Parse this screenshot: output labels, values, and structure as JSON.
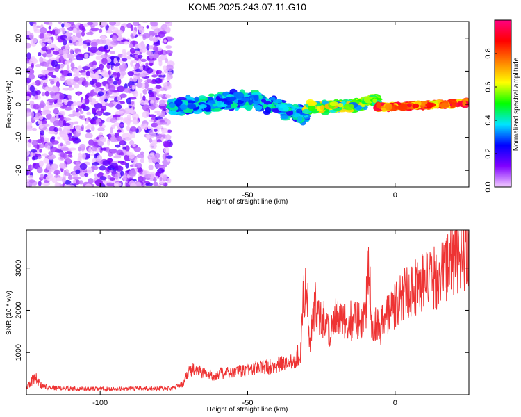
{
  "title": "KOM5.2025.243.07.11.G10",
  "chart_data": [
    {
      "type": "heatmap",
      "xlabel": "Height of straight line (km)",
      "ylabel": "Frequency (Hz)",
      "xlim": [
        -125,
        25
      ],
      "ylim": [
        -25,
        25
      ],
      "xticks": [
        -100,
        -50,
        0
      ],
      "yticks": [
        -20,
        -10,
        0,
        10,
        20
      ],
      "colorbar": {
        "label": "Normalized spectral amplitude",
        "range": [
          0,
          1
        ],
        "ticks": [
          0.0,
          0.2,
          0.4,
          0.6,
          0.8
        ],
        "colors": [
          "#f2ccff",
          "#8000ff",
          "#0000ff",
          "#00e5ff",
          "#00ff00",
          "#ffff00",
          "#ff8000",
          "#ff0000",
          "#ff0080"
        ]
      },
      "regions": [
        {
          "x": [
            -125,
            -76
          ],
          "freq_center": 0,
          "freq_spread": 25,
          "amplitude": [
            0.0,
            0.2
          ],
          "description": "scattered noise"
        },
        {
          "x": [
            -76,
            -48
          ],
          "freq_center": [
            -1,
            1.5
          ],
          "freq_spread": 3,
          "amplitude": [
            0.2,
            0.45
          ]
        },
        {
          "x": [
            -48,
            -30
          ],
          "freq_center": [
            1.5,
            -4
          ],
          "freq_spread": 3,
          "amplitude": [
            0.2,
            0.45
          ]
        },
        {
          "x": [
            -30,
            -10
          ],
          "freq_center": [
            -1,
            0
          ],
          "freq_spread": 2,
          "amplitude": [
            0.3,
            0.7
          ]
        },
        {
          "x": [
            -10,
            -6
          ],
          "freq_center": 1,
          "freq_spread": 1.5,
          "amplitude": [
            0.4,
            0.6
          ]
        },
        {
          "x": [
            -6,
            25
          ],
          "freq_center": [
            -1,
            0.5
          ],
          "freq_spread": 1,
          "amplitude": [
            0.6,
            0.95
          ]
        }
      ]
    },
    {
      "type": "line",
      "xlabel": "Height of straight line (km)",
      "ylabel": "SNR (10 * v/v)",
      "xlim": [
        -125,
        25
      ],
      "ylim": [
        0,
        3900
      ],
      "xticks": [
        -100,
        -50,
        0
      ],
      "yticks": [
        1000,
        2000,
        3000
      ],
      "color": "#ee3333",
      "series": [
        {
          "name": "SNR",
          "x": [
            -125,
            -122,
            -120,
            -115,
            -110,
            -105,
            -100,
            -95,
            -90,
            -85,
            -80,
            -76,
            -72,
            -70,
            -68,
            -65,
            -62,
            -60,
            -55,
            -50,
            -45,
            -40,
            -35,
            -32,
            -31,
            -30,
            -29,
            -28,
            -27,
            -25,
            -22,
            -20,
            -18,
            -15,
            -12,
            -10,
            -9,
            -8,
            -7,
            -5,
            -3,
            0,
            3,
            5,
            8,
            10,
            12,
            15,
            18,
            20,
            22,
            25
          ],
          "y": [
            180,
            420,
            220,
            160,
            150,
            140,
            140,
            140,
            140,
            150,
            150,
            150,
            250,
            550,
            600,
            520,
            450,
            500,
            520,
            600,
            650,
            700,
            800,
            1000,
            2400,
            2800,
            1100,
            1800,
            2100,
            1900,
            1500,
            1800,
            1700,
            1750,
            1800,
            1850,
            3500,
            1800,
            1700,
            1600,
            1900,
            2100,
            2400,
            2500,
            2600,
            2700,
            2700,
            2800,
            3100,
            3200,
            3300,
            3500
          ]
        }
      ]
    }
  ]
}
